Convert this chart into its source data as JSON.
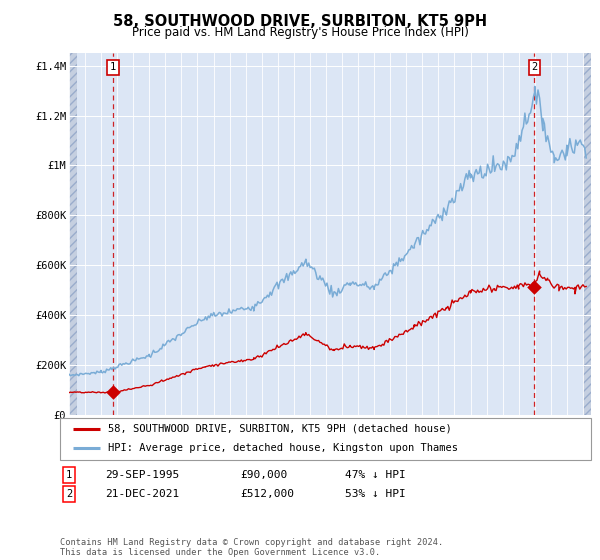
{
  "title": "58, SOUTHWOOD DRIVE, SURBITON, KT5 9PH",
  "subtitle": "Price paid vs. HM Land Registry's House Price Index (HPI)",
  "legend_line1": "58, SOUTHWOOD DRIVE, SURBITON, KT5 9PH (detached house)",
  "legend_line2": "HPI: Average price, detached house, Kingston upon Thames",
  "annotation1_label": "1",
  "annotation1_date": "29-SEP-1995",
  "annotation1_price": "£90,000",
  "annotation1_hpi": "47% ↓ HPI",
  "annotation2_label": "2",
  "annotation2_date": "21-DEC-2021",
  "annotation2_price": "£512,000",
  "annotation2_hpi": "53% ↓ HPI",
  "footer": "Contains HM Land Registry data © Crown copyright and database right 2024.\nThis data is licensed under the Open Government Licence v3.0.",
  "hpi_color": "#7aacd6",
  "price_color": "#cc0000",
  "marker_color": "#cc0000",
  "vline_color": "#cc0000",
  "background_color": "#dce6f5",
  "hatch_bg_color": "#c5cfe0",
  "grid_color": "#ffffff",
  "ylim": [
    0,
    1450000
  ],
  "yticks": [
    0,
    200000,
    400000,
    600000,
    800000,
    1000000,
    1200000,
    1400000
  ],
  "ytick_labels": [
    "£0",
    "£200K",
    "£400K",
    "£600K",
    "£800K",
    "£1M",
    "£1.2M",
    "£1.4M"
  ],
  "sale1_x": 1995.75,
  "sale1_y": 90000,
  "sale2_x": 2021.97,
  "sale2_y": 512000,
  "xmin": 1993.0,
  "xmax": 2025.5,
  "hatch_left_end": 1993.5,
  "hatch_right_start": 2025.0
}
